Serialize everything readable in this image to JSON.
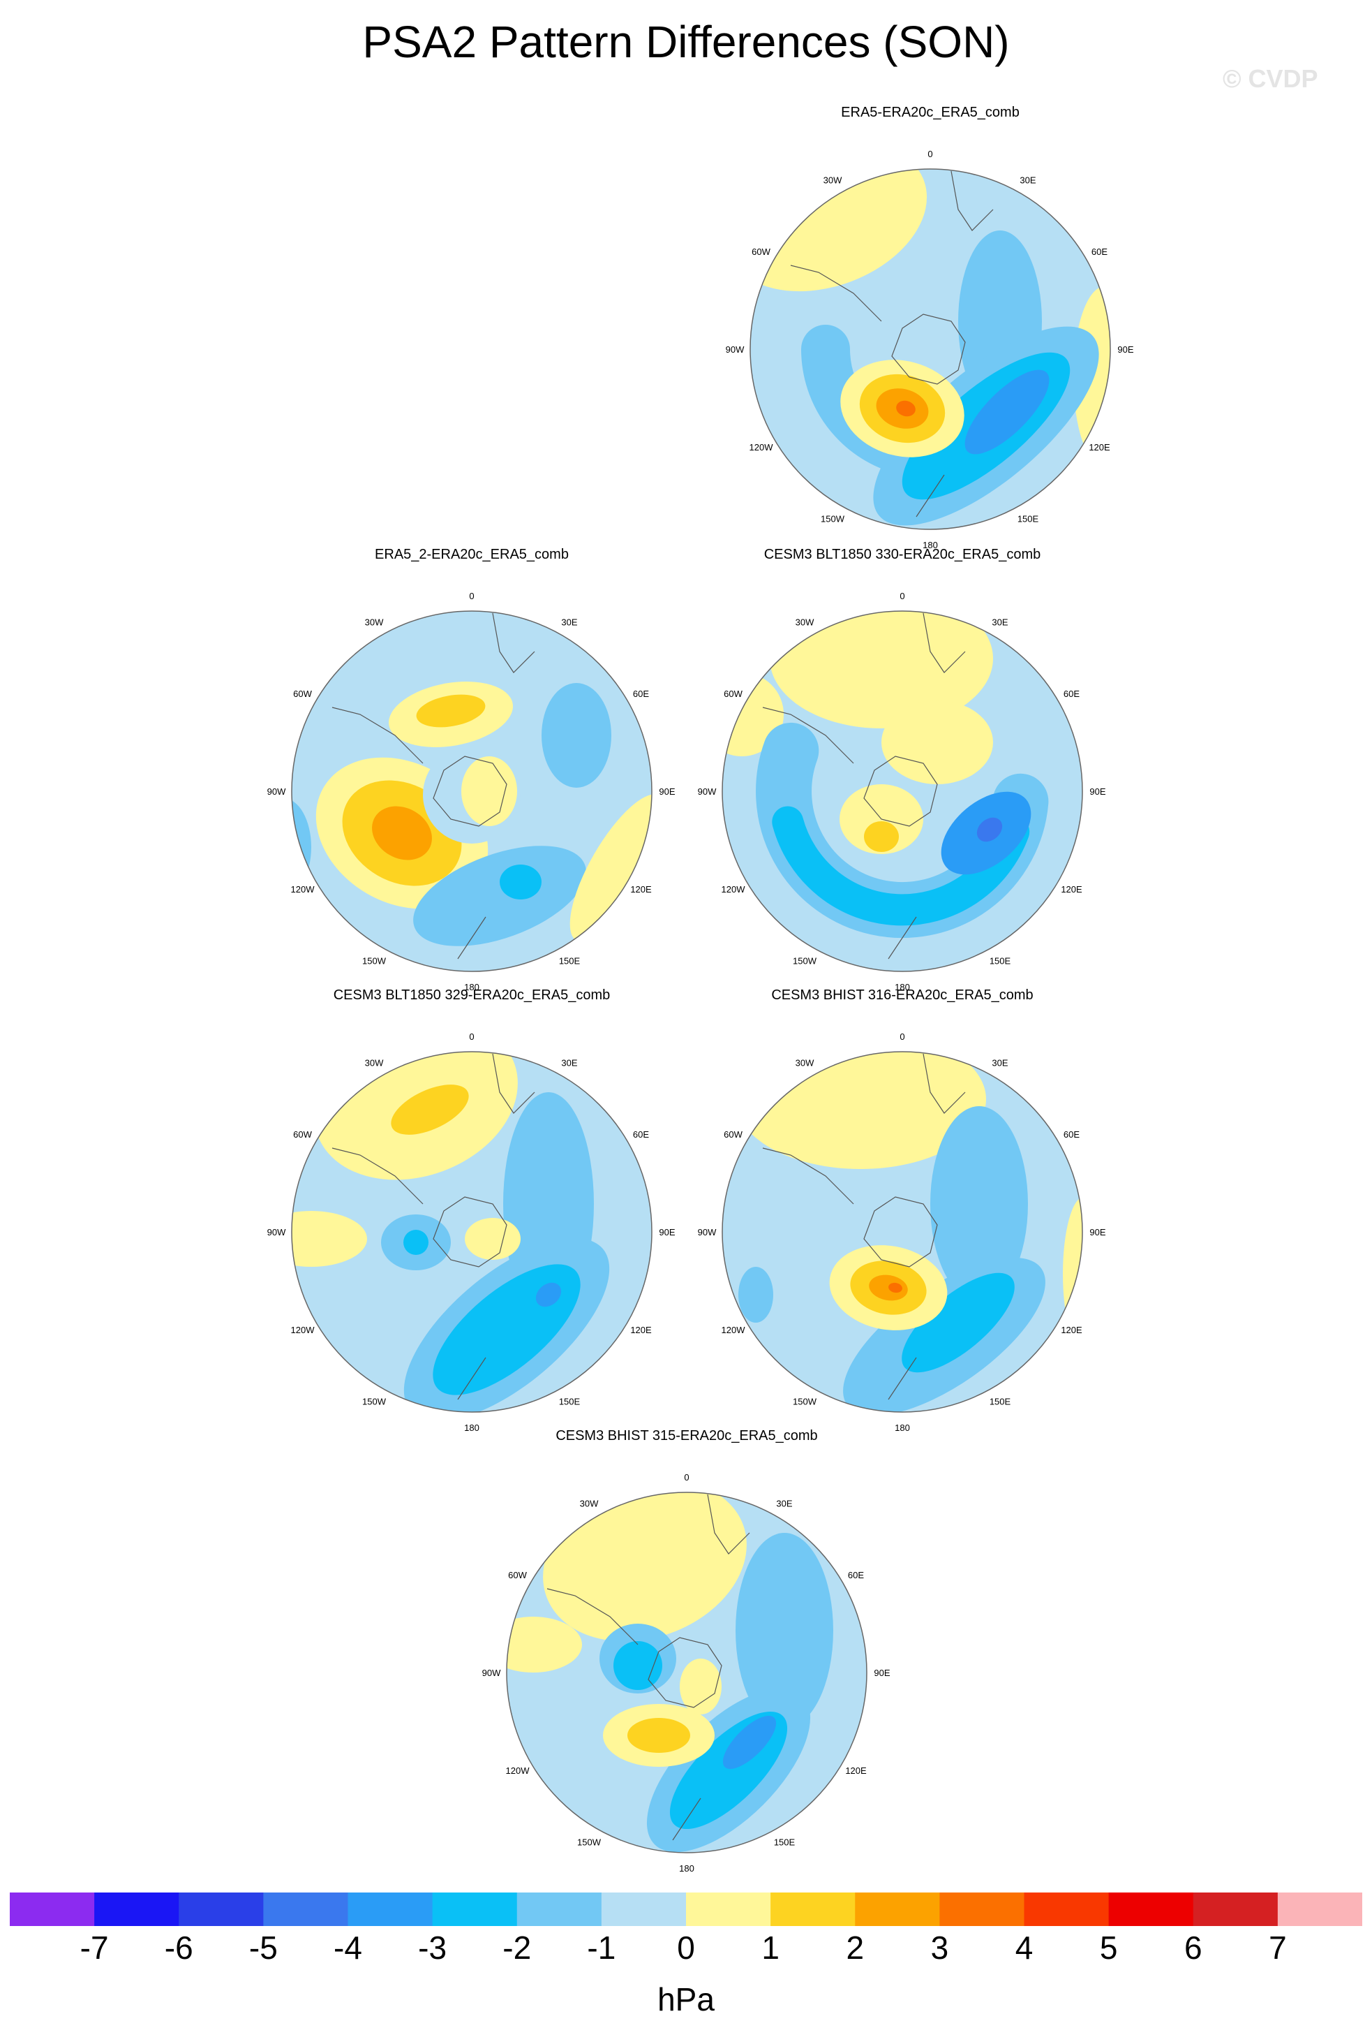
{
  "figure": {
    "title": "PSA2 Pattern Differences (SON)",
    "watermark": "© CVDP",
    "units": "hPa"
  },
  "projection": "south-polar stereographic",
  "graticule_labels": [
    "0",
    "30E",
    "60E",
    "90E",
    "120E",
    "150E",
    "180",
    "150W",
    "120W",
    "90W",
    "60W",
    "30W"
  ],
  "panels": [
    {
      "title": "ERA5-ERA20c_ERA5_comb"
    },
    {
      "title": "ERA5_2-ERA20c_ERA5_comb"
    },
    {
      "title": "CESM3 BLT1850 330-ERA20c_ERA5_comb"
    },
    {
      "title": "CESM3 BLT1850 329-ERA20c_ERA5_comb"
    },
    {
      "title": "CESM3 BHIST 316-ERA20c_ERA5_comb"
    },
    {
      "title": "CESM3 BHIST 315-ERA20c_ERA5_comb"
    }
  ],
  "colorbar": {
    "labels": [
      "-7",
      "-6",
      "-5",
      "-4",
      "-3",
      "-2",
      "-1",
      "0",
      "1",
      "2",
      "3",
      "4",
      "5",
      "6",
      "7"
    ],
    "colors": [
      "#8c2bf0",
      "#1a16f5",
      "#2a3fe8",
      "#3a78ee",
      "#2a9cf6",
      "#0ac0f6",
      "#72c8f4",
      "#b6dff4",
      "#fff799",
      "#fdd321",
      "#fca200",
      "#fb7000",
      "#f93800",
      "#ed0000",
      "#d52022",
      "#fbb4b8"
    ]
  }
}
